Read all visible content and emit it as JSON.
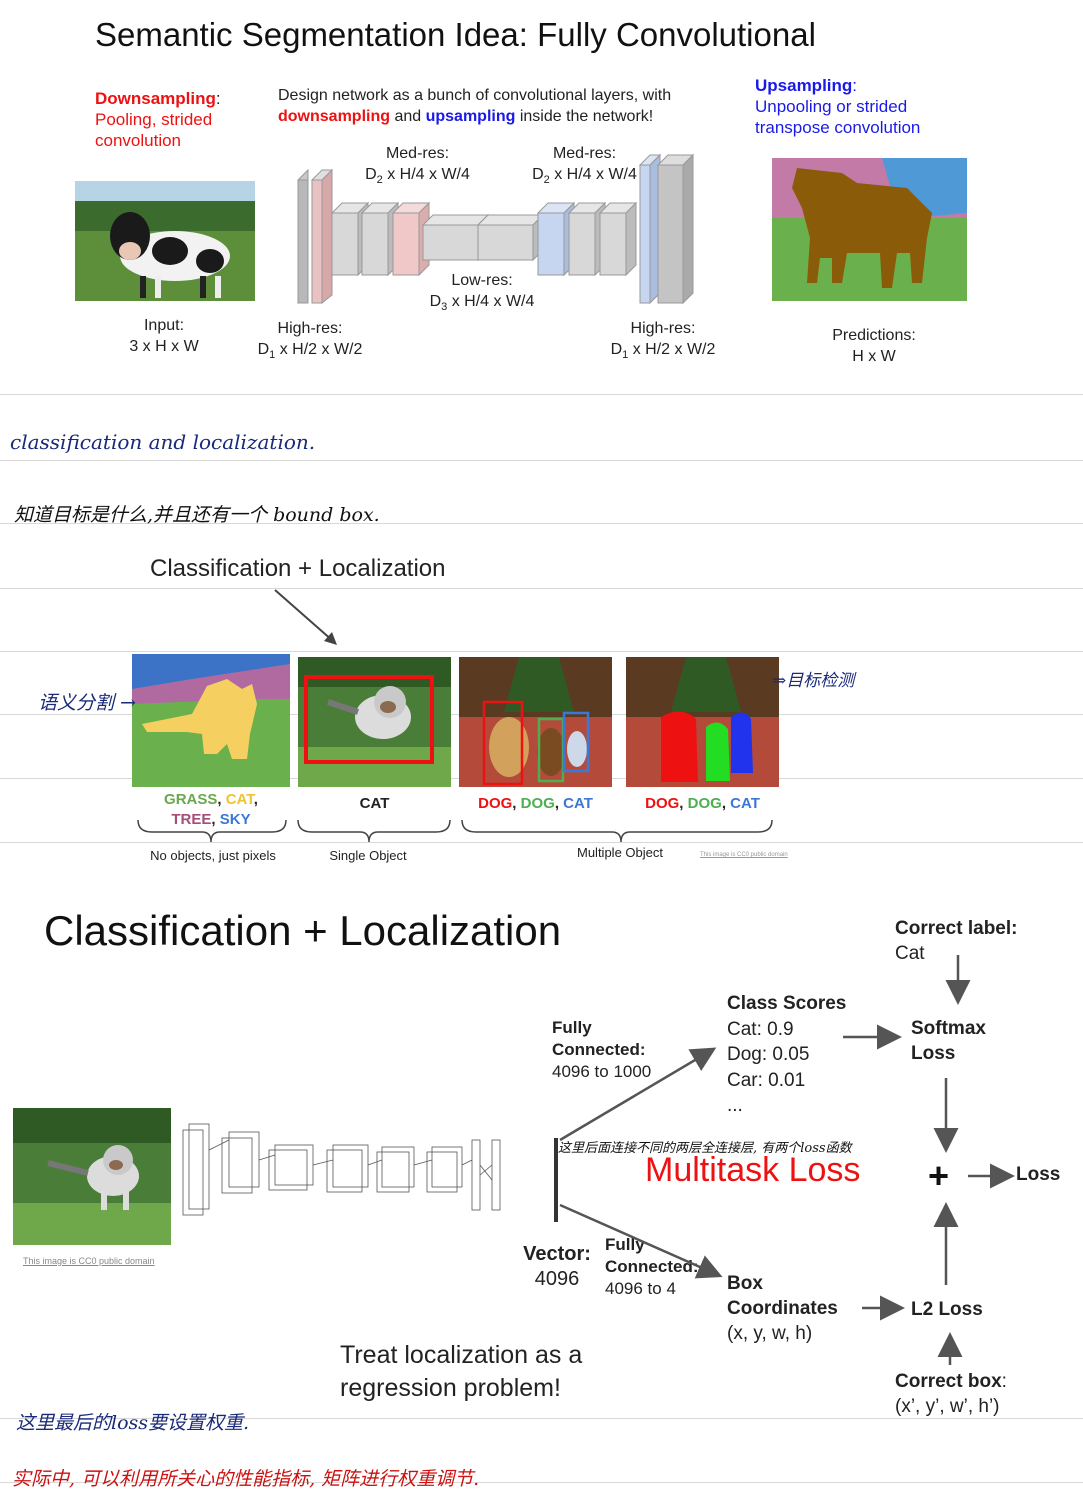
{
  "slide1": {
    "title": "Semantic Segmentation Idea: Fully Convolutional",
    "downsampling_head": "Downsampling",
    "downsampling_colon": ":",
    "downsampling_line2": "Pooling, strided",
    "downsampling_line3": "convolution",
    "design_line1": "Design network as a bunch of convolutional layers, with",
    "design_down": "downsampling",
    "design_and": " and ",
    "design_up": "upsampling",
    "design_tail": " inside the network!",
    "upsampling_head": "Upsampling",
    "upsampling_colon": ":",
    "upsampling_line2": "Unpooling or strided",
    "upsampling_line3": "transpose convolution",
    "medres_label": "Med-res:",
    "medres_dims": "x H/4 x W/4",
    "lowres_label": "Low-res:",
    "lowres_dims": "x H/4 x W/4",
    "highres_label": "High-res:",
    "highres_dims": "x H/2 x W/2",
    "d1": "D",
    "d1_sub": "1",
    "d2_sub": "2",
    "d3_sub": "3",
    "input_label": "Input:",
    "input_dims": "3 x H x W",
    "pred_label": "Predictions:",
    "pred_dims": "H x W"
  },
  "notes": {
    "note1": "classification and localization.",
    "note2": "知道目标是什么,并且还有一个 bound box.",
    "note_seg": "语义分割 →",
    "note_det": "⇒目标检测",
    "note_multitask": "这里后面连接不同的两层全连接层, 有两个loss函数",
    "note_weight": "这里最后的loss要设置权重.",
    "note_practice": "实际中, 可以利用所关心的性能指标, 矩阵进行权重调节."
  },
  "slide2": {
    "title": "Classification + Localization",
    "labels1_grass": "GRASS",
    "labels1_cat": "CAT",
    "labels1_tree": "TREE",
    "labels1_sky": "SKY",
    "labels2": "CAT",
    "labels3_dog1": "DOG",
    "labels3_dog2": "DOG",
    "labels3_cat": "CAT",
    "sep": ", ",
    "brace1": "No objects, just pixels",
    "brace2": "Single Object",
    "brace3": "Multiple Object",
    "credit": "This image is CC0 public domain"
  },
  "slide3": {
    "title": "Classification + Localization",
    "correct_label_head": "Correct label:",
    "correct_label_val": "Cat",
    "class_scores": "Class Scores",
    "score1": "Cat: 0.9",
    "score2": "Dog: 0.05",
    "score3": "Car: 0.01",
    "score_more": "...",
    "fc1_line1": "Fully",
    "fc1_line2": "Connected:",
    "fc1_line3": "4096 to 1000",
    "softmax1": "Softmax",
    "softmax2": "Loss",
    "multitask": "Multitask Loss",
    "plus": "+",
    "loss": "Loss",
    "vector_head": "Vector:",
    "vector_val": "4096",
    "fc2_line1": "Fully",
    "fc2_line2": "Connected:",
    "fc2_line3": "4096 to 4",
    "box1": "Box",
    "box2": "Coordinates",
    "box3": "(x, y, w, h)",
    "l2": "L2 Loss",
    "treat1": "Treat localization as a",
    "treat2": "regression problem!",
    "correct_box_head": "Correct box",
    "correct_box_colon": ":",
    "correct_box_val": "(x’, y’, w’, h’)",
    "credit": "This image is CC0 public domain"
  },
  "colors": {
    "red": "#ee1111",
    "blue": "#1a1ae6",
    "grass_label": "#6aa84f",
    "cat_label": "#f1c232",
    "tree_label": "#a64d79",
    "sky_label": "#3c78d8",
    "dog_red": "#ee1111",
    "dog_green": "#4caf50",
    "cat_blue": "#3c78d8",
    "hand_blue": "#1a2a7a",
    "hand_red": "#cc1111"
  }
}
